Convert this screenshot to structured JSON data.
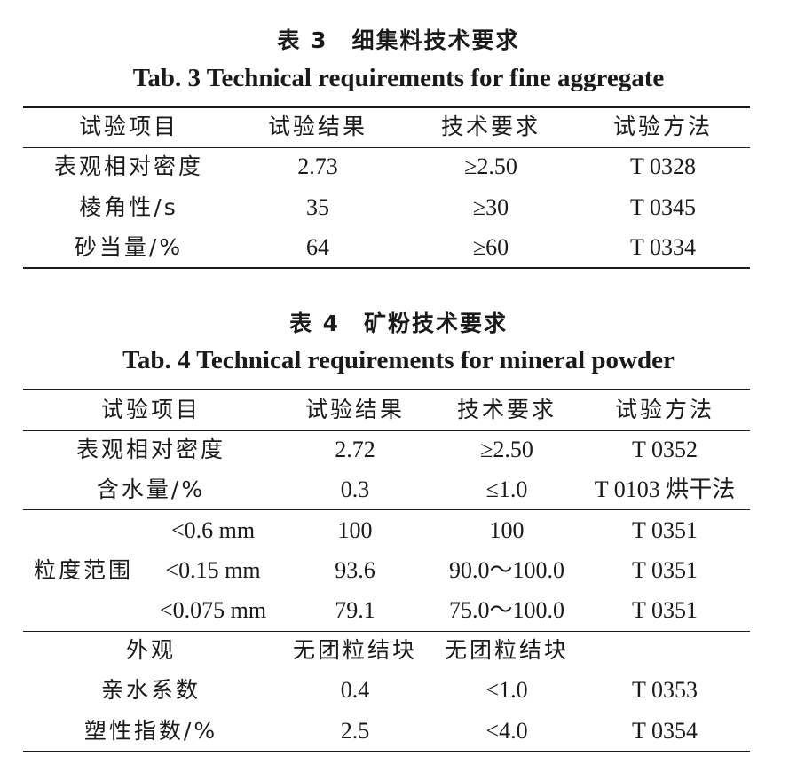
{
  "table3": {
    "caption_cn": "表 3　细集料技术要求",
    "caption_en": "Tab. 3 Technical requirements for fine aggregate",
    "headers": [
      "试验项目",
      "试验结果",
      "技术要求",
      "试验方法"
    ],
    "rows": [
      {
        "item": "表观相对密度",
        "result": "2.73",
        "requirement": "≥2.50",
        "method": "T 0328"
      },
      {
        "item": "棱角性/s",
        "result": "35",
        "requirement": "≥30",
        "method": "T 0345"
      },
      {
        "item": "砂当量/%",
        "result": "64",
        "requirement": "≥60",
        "method": "T 0334"
      }
    ]
  },
  "table4": {
    "caption_cn": "表 4　矿粉技术要求",
    "caption_en": "Tab. 4 Technical requirements for mineral powder",
    "headers": [
      "试验项目",
      "试验结果",
      "技术要求",
      "试验方法"
    ],
    "rows": [
      {
        "item": "表观相对密度",
        "result": "2.72",
        "requirement": "≥2.50",
        "method": "T 0352"
      },
      {
        "item": "含水量/%",
        "result": "0.3",
        "requirement": "≤1.0",
        "method": "T 0103 烘干法"
      }
    ],
    "gradation_label": "粒度范围",
    "gradation_rows": [
      {
        "item": "<0.6 mm",
        "result": "100",
        "requirement": "100",
        "method": "T 0351"
      },
      {
        "item": "<0.15 mm",
        "result": "93.6",
        "requirement": "90.0～100.0",
        "method": "T 0351"
      },
      {
        "item": "<0.075 mm",
        "result": "79.1",
        "requirement": "75.0～100.0",
        "method": "T 0351"
      }
    ],
    "other_rows": [
      {
        "item": "外观",
        "result": "无团粒结块",
        "requirement": "无团粒结块",
        "method": ""
      },
      {
        "item": "亲水系数",
        "result": "0.4",
        "requirement": "<1.0",
        "method": "T 0353"
      },
      {
        "item": "塑性指数/%",
        "result": "2.5",
        "requirement": "<4.0",
        "method": "T 0354"
      }
    ]
  }
}
